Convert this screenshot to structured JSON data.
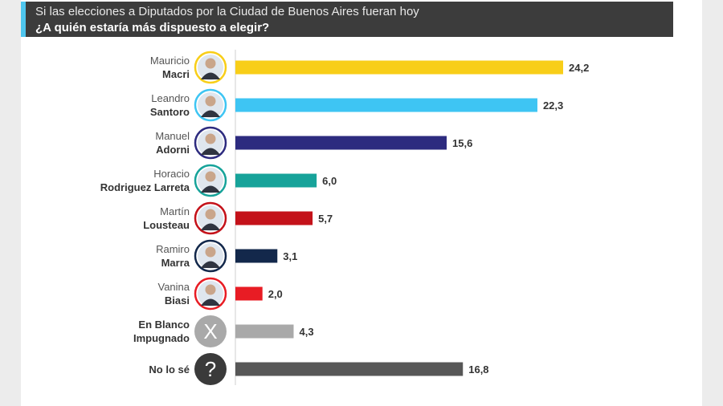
{
  "header": {
    "subtitle": "Si las elecciones a Diputados por la Ciudad de Buenos Aires fueran hoy",
    "title": "¿A quién estaría más dispuesto a elegir?"
  },
  "chart_data": {
    "type": "bar",
    "orientation": "horizontal",
    "xlim": [
      0,
      24.2
    ],
    "grid": false,
    "categories": [
      {
        "first": "Mauricio",
        "last": "Macri",
        "value": 24.2,
        "label": "24,2",
        "color": "#f8ce19",
        "avatar": "photo",
        "ring": "#f8ce19"
      },
      {
        "first": "Leandro",
        "last": "Santoro",
        "value": 22.3,
        "label": "22,3",
        "color": "#3ec5f3",
        "avatar": "photo",
        "ring": "#3ec5f3"
      },
      {
        "first": "Manuel",
        "last": "Adorni",
        "value": 15.6,
        "label": "15,6",
        "color": "#2d2b7f",
        "avatar": "photo",
        "ring": "#2d2b7f"
      },
      {
        "first": "Horacio",
        "last": "Rodriguez Larreta",
        "value": 6.0,
        "label": "6,0",
        "color": "#17a39a",
        "avatar": "photo",
        "ring": "#17a39a"
      },
      {
        "first": "Martín",
        "last": "Lousteau",
        "value": 5.7,
        "label": "5,7",
        "color": "#c4121a",
        "avatar": "photo",
        "ring": "#c4121a"
      },
      {
        "first": "Ramiro",
        "last": "Marra",
        "value": 3.1,
        "label": "3,1",
        "color": "#13284b",
        "avatar": "photo",
        "ring": "#13284b"
      },
      {
        "first": "Vanina",
        "last": "Biasi",
        "value": 2.0,
        "label": "2,0",
        "color": "#e81c24",
        "avatar": "photo",
        "ring": "#e81c24"
      },
      {
        "first": "En Blanco",
        "last": "Impugnado",
        "value": 4.3,
        "label": "4,3",
        "color": "#a9a9a9",
        "avatar": "x-icon",
        "ring": "#a9a9a9",
        "symbol": "X",
        "firstBold": true
      },
      {
        "first": "",
        "last": "No lo sé",
        "value": 16.8,
        "label": "16,8",
        "color": "#575757",
        "avatar": "question-icon",
        "ring": "#3a3a3a",
        "symbol": "?"
      }
    ]
  }
}
